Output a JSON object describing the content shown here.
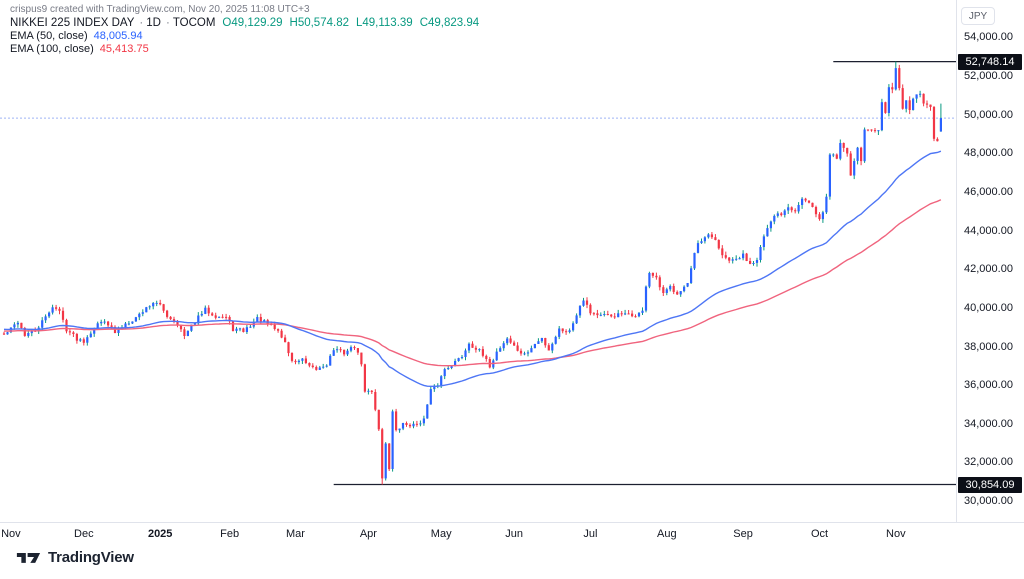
{
  "attribution": "crispus9 created with TradingView.com, Nov 20, 2025 11:08 UTC+3",
  "legend": {
    "symbol_title": "NIKKEI 225 INDEX DAY",
    "separator": "·",
    "interval": "1D",
    "exchange": "TOCOM",
    "ohlc": {
      "open": "O49,129.29",
      "high": "H50,574.82",
      "low": "L49,113.39",
      "close": "C49,823.94"
    },
    "ema50": {
      "label": "EMA (50, close)",
      "value": "48,005.94"
    },
    "ema100": {
      "label": "EMA (100, close)",
      "value": "45,413.75"
    }
  },
  "axis": {
    "currency_badge": "JPY",
    "price_ticks": [
      {
        "label": "54,000.00",
        "value": 54000
      },
      {
        "label": "52,000.00",
        "value": 52000
      },
      {
        "label": "50,000.00",
        "value": 50000
      },
      {
        "label": "48,000.00",
        "value": 48000
      },
      {
        "label": "46,000.00",
        "value": 46000
      },
      {
        "label": "44,000.00",
        "value": 44000
      },
      {
        "label": "42,000.00",
        "value": 42000
      },
      {
        "label": "40,000.00",
        "value": 40000
      },
      {
        "label": "38,000.00",
        "value": 38000
      },
      {
        "label": "36,000.00",
        "value": 36000
      },
      {
        "label": "34,000.00",
        "value": 34000
      },
      {
        "label": "32,000.00",
        "value": 32000
      },
      {
        "label": "30,000.00",
        "value": 30000
      }
    ],
    "price_labels": [
      {
        "label": "52,748.14",
        "value": 52748.14,
        "line_start_day": 239
      },
      {
        "label": "30,854.09",
        "value": 30854.09,
        "line_start_day": 95
      }
    ],
    "time_ticks": [
      {
        "label": "Nov",
        "day": 2
      },
      {
        "label": "Dec",
        "day": 23
      },
      {
        "label": "2025",
        "day": 45,
        "year": true
      },
      {
        "label": "Feb",
        "day": 65
      },
      {
        "label": "Mar",
        "day": 84
      },
      {
        "label": "Apr",
        "day": 105
      },
      {
        "label": "May",
        "day": 126
      },
      {
        "label": "Jun",
        "day": 147
      },
      {
        "label": "Jul",
        "day": 169
      },
      {
        "label": "Aug",
        "day": 191
      },
      {
        "label": "Sep",
        "day": 213
      },
      {
        "label": "Oct",
        "day": 235
      },
      {
        "label": "Nov",
        "day": 257
      }
    ]
  },
  "chart_data": {
    "type": "candlestick",
    "title": "NIKKEI 225 INDEX, 1D, TOCOM",
    "currency": "JPY",
    "ylim": [
      30000,
      54000
    ],
    "x_range": [
      "Nov 2024",
      "Nov 20, 2025"
    ],
    "grid": false,
    "last_bar": {
      "open": 49129.29,
      "high": 50574.82,
      "low": 49113.39,
      "close": 49823.94
    },
    "indicators": [
      {
        "name": "EMA (50, close)",
        "period": 50,
        "value": 48005.94
      },
      {
        "name": "EMA (100, close)",
        "period": 100,
        "value": 45413.75
      }
    ],
    "key_levels": {
      "record_high": 52748.14,
      "crash_low": 30854.09
    },
    "trend_anchors": [
      [
        0,
        38600
      ],
      [
        2,
        38900
      ],
      [
        4,
        39300
      ],
      [
        6,
        38600
      ],
      [
        9,
        38800
      ],
      [
        12,
        39500
      ],
      [
        14,
        40100
      ],
      [
        16,
        39800
      ],
      [
        18,
        38900
      ],
      [
        21,
        38400
      ],
      [
        23,
        38300
      ],
      [
        26,
        39000
      ],
      [
        29,
        39400
      ],
      [
        32,
        38700
      ],
      [
        35,
        39200
      ],
      [
        38,
        39500
      ],
      [
        41,
        40000
      ],
      [
        43,
        40300
      ],
      [
        45,
        40100
      ],
      [
        47,
        39600
      ],
      [
        50,
        39200
      ],
      [
        52,
        38500
      ],
      [
        55,
        39300
      ],
      [
        58,
        39900
      ],
      [
        61,
        39600
      ],
      [
        64,
        39500
      ],
      [
        66,
        38900
      ],
      [
        69,
        38800
      ],
      [
        71,
        39100
      ],
      [
        73,
        39450
      ],
      [
        76,
        39150
      ],
      [
        79,
        38800
      ],
      [
        81,
        38200
      ],
      [
        83,
        37200
      ],
      [
        86,
        37300
      ],
      [
        88,
        36900
      ],
      [
        90,
        36800
      ],
      [
        93,
        37100
      ],
      [
        95,
        37850
      ],
      [
        98,
        37680
      ],
      [
        101,
        38000
      ],
      [
        103,
        37150
      ],
      [
        104,
        35620
      ],
      [
        106,
        35700
      ],
      [
        108,
        33780
      ],
      [
        109,
        31140
      ],
      [
        110,
        33010
      ],
      [
        111,
        31710
      ],
      [
        112,
        34610
      ],
      [
        113,
        33590
      ],
      [
        115,
        33980
      ],
      [
        118,
        33920
      ],
      [
        121,
        34220
      ],
      [
        123,
        35710
      ],
      [
        125,
        36050
      ],
      [
        127,
        36830
      ],
      [
        130,
        37200
      ],
      [
        132,
        37500
      ],
      [
        134,
        38180
      ],
      [
        137,
        37750
      ],
      [
        140,
        36990
      ],
      [
        142,
        37720
      ],
      [
        145,
        38430
      ],
      [
        148,
        37800
      ],
      [
        150,
        37550
      ],
      [
        153,
        38100
      ],
      [
        155,
        38420
      ],
      [
        157,
        37830
      ],
      [
        160,
        38890
      ],
      [
        163,
        38790
      ],
      [
        166,
        40150
      ],
      [
        167,
        40490
      ],
      [
        169,
        39790
      ],
      [
        172,
        39590
      ],
      [
        175,
        39570
      ],
      [
        178,
        39660
      ],
      [
        181,
        39580
      ],
      [
        184,
        39780
      ],
      [
        185,
        41170
      ],
      [
        186,
        41830
      ],
      [
        188,
        41460
      ],
      [
        190,
        40680
      ],
      [
        192,
        41070
      ],
      [
        194,
        40800
      ],
      [
        197,
        41240
      ],
      [
        199,
        42720
      ],
      [
        200,
        43270
      ],
      [
        203,
        43710
      ],
      [
        205,
        43550
      ],
      [
        207,
        42630
      ],
      [
        210,
        42400
      ],
      [
        213,
        42720
      ],
      [
        215,
        42310
      ],
      [
        217,
        42580
      ],
      [
        219,
        43640
      ],
      [
        221,
        44370
      ],
      [
        222,
        44770
      ],
      [
        224,
        44900
      ],
      [
        226,
        45300
      ],
      [
        228,
        45050
      ],
      [
        230,
        45630
      ],
      [
        232,
        45360
      ],
      [
        234,
        44930
      ],
      [
        235,
        44550
      ],
      [
        236,
        44940
      ],
      [
        237,
        45770
      ],
      [
        238,
        47940
      ],
      [
        239,
        47950
      ],
      [
        240,
        47740
      ],
      [
        241,
        48580
      ],
      [
        243,
        48090
      ],
      [
        244,
        46850
      ],
      [
        245,
        47670
      ],
      [
        246,
        48280
      ],
      [
        247,
        47580
      ],
      [
        248,
        49190
      ],
      [
        250,
        49310
      ],
      [
        252,
        49300
      ],
      [
        253,
        50510
      ],
      [
        254,
        50220
      ],
      [
        255,
        51310
      ],
      [
        256,
        51330
      ],
      [
        257,
        52410
      ],
      [
        258,
        51500
      ],
      [
        259,
        50210
      ],
      [
        260,
        50880
      ],
      [
        261,
        50280
      ],
      [
        262,
        50910
      ],
      [
        264,
        51060
      ],
      [
        265,
        50700
      ],
      [
        266,
        50380
      ],
      [
        267,
        50320
      ],
      [
        268,
        48700
      ],
      [
        269,
        48540
      ],
      [
        270,
        49823.94
      ]
    ],
    "overrides": [
      {
        "day": 109,
        "low": 30854.09
      },
      {
        "day": 257,
        "high": 52748.14
      },
      {
        "day": 270,
        "open": 49129.29,
        "high": 50574.82,
        "low": 49113.39,
        "close": 49823.94
      }
    ]
  },
  "colors": {
    "up_body": "#2962ff",
    "up_wick": "#089981",
    "down": "#f23645",
    "ema50": "#4e76f5",
    "ema100": "#f0647e",
    "close_line": "#9fb4f5",
    "level_line": "#1c2030"
  },
  "footer": {
    "logo_text": "TradingView"
  }
}
